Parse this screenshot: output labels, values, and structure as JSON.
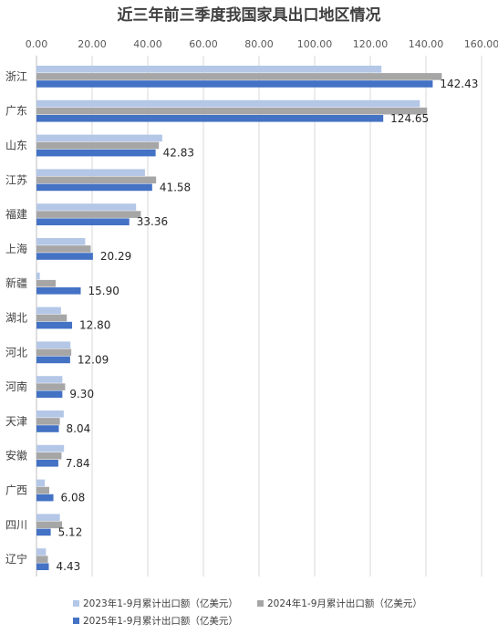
{
  "chart_data": {
    "type": "bar",
    "orientation": "horizontal",
    "title": "近三年前三季度我国家具出口地区情况",
    "xlim": [
      0,
      160
    ],
    "xticks": [
      "0.00",
      "20.00",
      "40.00",
      "60.00",
      "80.00",
      "100.00",
      "120.00",
      "140.00",
      "160.00"
    ],
    "grid": true,
    "legend_position": "bottom",
    "categories": [
      "浙江",
      "广东",
      "山东",
      "江苏",
      "福建",
      "上海",
      "新疆",
      "湖北",
      "河北",
      "河南",
      "天津",
      "安徽",
      "广西",
      "四川",
      "辽宁"
    ],
    "series": [
      {
        "name": "2023年1-9月累计出口额（亿美元）",
        "color": "#b4c7e7",
        "values": [
          124.0,
          137.8,
          45.2,
          39.0,
          35.8,
          17.5,
          1.2,
          8.8,
          12.2,
          9.3,
          9.8,
          9.9,
          3.0,
          8.4,
          3.4
        ]
      },
      {
        "name": "2024年1-9月累计出口额（亿美元）",
        "color": "#a6a6a6",
        "values": [
          145.7,
          140.4,
          44.0,
          43.0,
          37.5,
          19.5,
          6.9,
          10.9,
          12.5,
          10.3,
          8.4,
          9.0,
          4.6,
          9.2,
          4.1
        ]
      },
      {
        "name": "2025年1-9月累计出口额（亿美元）",
        "color": "#4472c4",
        "values": [
          142.43,
          124.65,
          42.83,
          41.58,
          33.36,
          20.29,
          15.9,
          12.8,
          12.09,
          9.3,
          8.04,
          7.84,
          6.08,
          5.12,
          4.43
        ],
        "labels": [
          "142.43",
          "124.65",
          "42.83",
          "41.58",
          "33.36",
          "20.29",
          "15.90",
          "12.80",
          "12.09",
          "9.30",
          "8.04",
          "7.84",
          "6.08",
          "5.12",
          "4.43"
        ]
      }
    ]
  }
}
